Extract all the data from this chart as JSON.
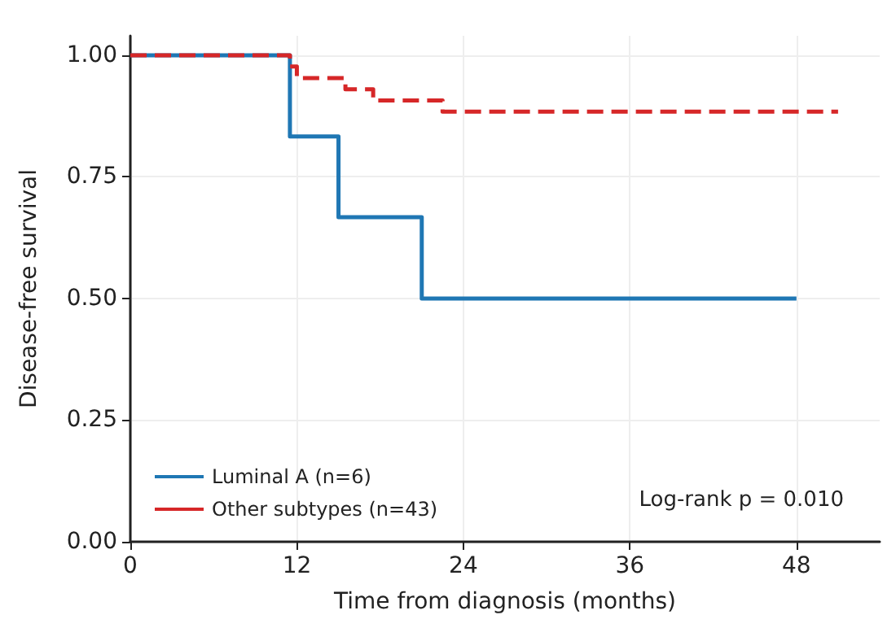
{
  "chart_data": {
    "type": "step",
    "xlabel": "Time from diagnosis (months)",
    "ylabel": "Disease-free survival",
    "xlim": [
      0,
      54
    ],
    "xticks": [
      0,
      12,
      24,
      36,
      48
    ],
    "ylim": [
      0,
      1.04
    ],
    "yticks": [
      {
        "value": 0,
        "label": "0.00"
      },
      {
        "value": 0.25,
        "label": "0.25"
      },
      {
        "value": 0.5,
        "label": "0.50"
      },
      {
        "value": 0.75,
        "label": "0.75"
      },
      {
        "value": 1,
        "label": "1.00"
      }
    ],
    "series": [
      {
        "name": "Luminal A (n=6)",
        "color": "#1f77b4",
        "line_style": "solid",
        "x": [
          0,
          11.5,
          15,
          21,
          48
        ],
        "values": [
          1,
          0.833,
          0.667,
          0.5,
          0.5
        ]
      },
      {
        "name": "Other subtypes (n=43)",
        "color": "#d62728",
        "line_style": "dashed",
        "x": [
          0,
          11.5,
          12,
          15.5,
          17.5,
          22.5,
          51
        ],
        "values": [
          1,
          0.977,
          0.953,
          0.93,
          0.907,
          0.884,
          0.884
        ]
      }
    ],
    "annotations": [
      "Log-rank p = 0.010"
    ],
    "grid": true,
    "legend": "bottom left"
  }
}
